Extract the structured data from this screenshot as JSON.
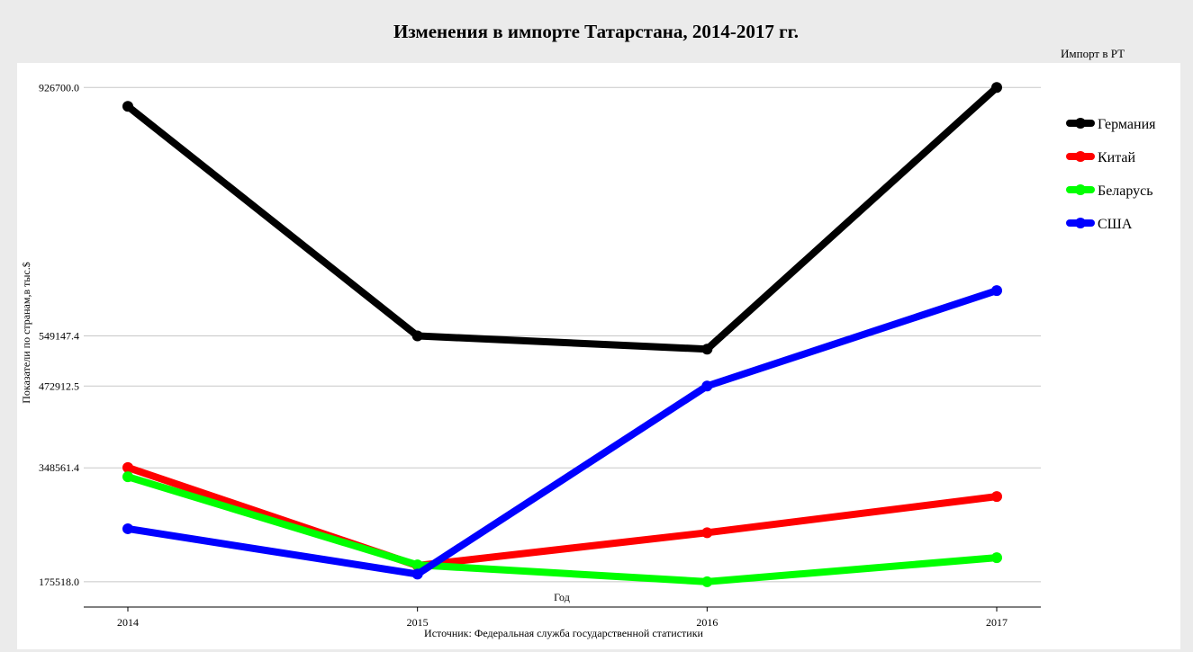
{
  "chart_data": {
    "type": "line",
    "title": "Изменения в импорте Татарстана, 2014-2017 гг.",
    "xlabel": "Год",
    "ylabel": "Показатели по странам,в тыс.$",
    "source": "Источник: Федеральная служба государственной статистики",
    "legend_title": "Импорт в РТ",
    "legend_position": "right",
    "grid": true,
    "x": [
      "2014",
      "2015",
      "2016",
      "2017"
    ],
    "y_ticks": [
      175518.0,
      348561.4,
      472912.5,
      549147.4,
      926700.0
    ],
    "y_tick_labels": [
      "175518.0",
      "348561.4",
      "472912.5",
      "549147.4",
      "926700.0"
    ],
    "ylim": [
      137000,
      964000
    ],
    "series": [
      {
        "name": "Германия",
        "color": "#000000",
        "values": [
          898000,
          549147.4,
          529000,
          926700.0
        ]
      },
      {
        "name": "Китай",
        "color": "#ff0000",
        "values": [
          349000,
          200000,
          250000,
          305000
        ]
      },
      {
        "name": "Беларусь",
        "color": "#00ff00",
        "values": [
          335000,
          201000,
          175518.0,
          212000
        ]
      },
      {
        "name": "США",
        "color": "#0000ff",
        "values": [
          256000,
          187000,
          472912.5,
          618000
        ]
      }
    ]
  }
}
